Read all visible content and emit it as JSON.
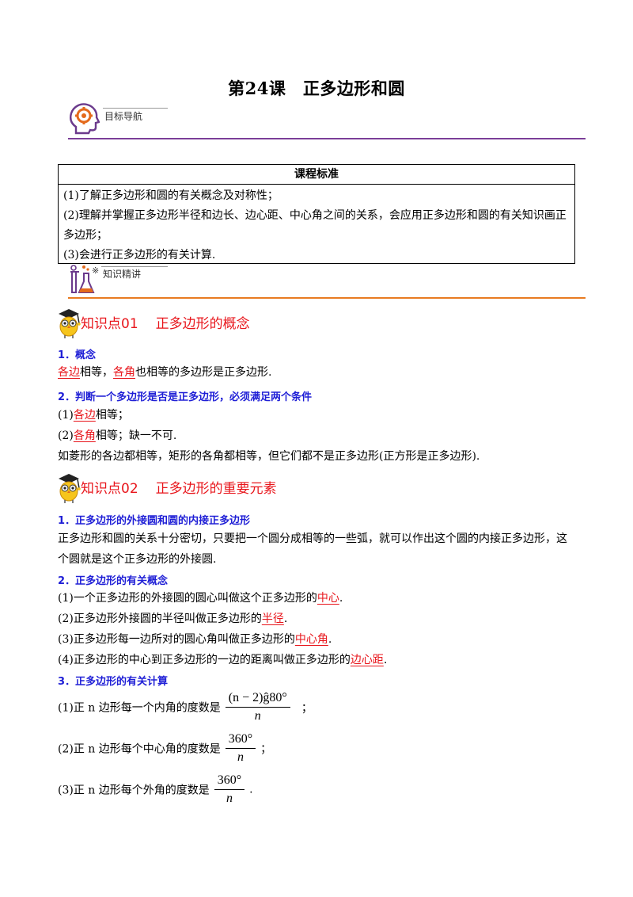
{
  "title": "第24课　正多边形和圆",
  "banners": {
    "target_nav": "目标导航",
    "knowledge": "知识精讲",
    "knowledge_icon_mark": "※"
  },
  "standard": {
    "header": "课程标准",
    "items": [
      "(1)了解正多边形和圆的有关概念及对称性；",
      "(2)理解并掌握正多边形半径和边长、边心距、中心角之间的关系，会应用正多边形和圆的有关知识画正多边形；",
      "(3)会进行正多边形的有关计算."
    ]
  },
  "kp1": {
    "number": "知识点01",
    "title": "正多边形的概念",
    "h1": "1．概念",
    "def_a": "各边",
    "def_b": "相等，",
    "def_c": "各角",
    "def_d": "也相等的多边形是正多边形.",
    "h2": "2．判断一个多边形是否是正多边形，必须满足两个条件",
    "c1_prefix": "(1)",
    "c1_red": "各边",
    "c1_suffix": "相等；",
    "c2_prefix": "(2)",
    "c2_red": "各角",
    "c2_suffix": "相等；缺一不可.",
    "example": "如菱形的各边都相等，矩形的各角都相等，但它们都不是正多边形(正方形是正多边形)."
  },
  "kp2": {
    "number": "知识点02",
    "title": "正多边形的重要元素",
    "h1": "1．正多边形的外接圆和圆的内接正多边形",
    "p1_l1": "正多边形和圆的关系十分密切，只要把一个圆分成相等的一些弧，就可以作出这个圆的内接正多边形，这",
    "p1_l2": "个圆就是这个正多边形的外接圆.",
    "h2": "2．正多边形的有关概念",
    "d1_text": "(1)一个正多边形的外接圆的圆心叫做这个正多边形的",
    "d1_red": "中心",
    "d1_end": ".",
    "d2_text": "(2)正多边形外接圆的半径叫做正多边形的",
    "d2_red": "半径",
    "d2_end": ".",
    "d3_text": "(3)正多边形每一边所对的圆心角叫做正多边形的",
    "d3_red": "中心角",
    "d3_end": ".",
    "d4_text": "(4)正多边形的中心到正多边形的一边的距离叫做正多边形的",
    "d4_red": "边心距",
    "d4_end": ".",
    "h3": "3．正多边形的有关计算",
    "f1_text": "(1)正 n 边形每一个内角的度数是",
    "f1_num": "(n − 2)ĝ80°",
    "f1_den": "n",
    "f1_end": "；",
    "f2_text": "(2)正 n 边形每个中心角的度数是",
    "f2_num": "360°",
    "f2_den": "n",
    "f2_end": "；",
    "f3_text": "(3)正 n 边形每个外角的度数是",
    "f3_num": "360°",
    "f3_den": "n",
    "f3_end": "."
  },
  "colors": {
    "title_red": "#e8151b",
    "heading_blue": "#1f1fd6",
    "banner1_rule": "#7b3f98",
    "banner2_rule": "#e87b21"
  }
}
